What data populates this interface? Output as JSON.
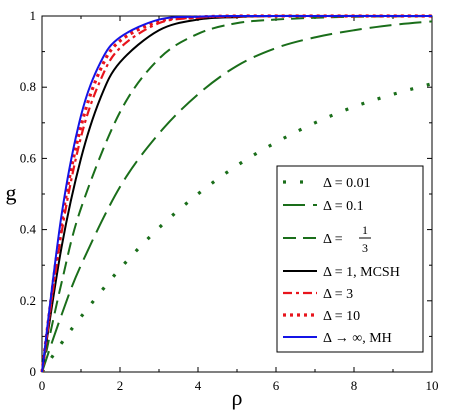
{
  "chart_data": {
    "type": "line",
    "xlabel": "ρ",
    "ylabel": "g",
    "xlim": [
      0,
      10
    ],
    "ylim": [
      0,
      1
    ],
    "x_ticks": [
      "0",
      "2",
      "4",
      "6",
      "8",
      "10"
    ],
    "y_ticks": [
      "0",
      "0.2",
      "0.4",
      "0.6",
      "0.8",
      "1"
    ],
    "grid": false,
    "legend_position": "right",
    "series": [
      {
        "name": "Δ = 0.01",
        "color": "#1a6e1a",
        "style": "dotted",
        "x": [
          0,
          0.5,
          1,
          2,
          3,
          4,
          5,
          6,
          7,
          8,
          9,
          10
        ],
        "y": [
          0,
          0.081,
          0.155,
          0.29,
          0.405,
          0.5,
          0.58,
          0.645,
          0.7,
          0.745,
          0.78,
          0.81
        ]
      },
      {
        "name": "Δ = 0.1",
        "color": "#1a6e1a",
        "style": "long-dash",
        "x": [
          0,
          0.5,
          1,
          2,
          3,
          4,
          5,
          6,
          7,
          8,
          9,
          10
        ],
        "y": [
          0,
          0.16,
          0.3,
          0.52,
          0.67,
          0.78,
          0.86,
          0.91,
          0.94,
          0.96,
          0.975,
          0.985
        ]
      },
      {
        "name": "Δ = 1/3",
        "color": "#1a6e1a",
        "style": "dash",
        "x": [
          0,
          0.5,
          1,
          2,
          3,
          4,
          5,
          6,
          7,
          8,
          9,
          10
        ],
        "y": [
          0,
          0.25,
          0.46,
          0.73,
          0.88,
          0.95,
          0.98,
          0.99,
          0.995,
          0.998,
          0.999,
          1.0
        ]
      },
      {
        "name": "Δ = 1, MCSH",
        "color": "#000000",
        "style": "solid",
        "x": [
          0,
          0.5,
          1,
          1.5,
          2,
          3,
          4,
          5,
          6,
          7,
          8,
          10
        ],
        "y": [
          0,
          0.35,
          0.6,
          0.77,
          0.87,
          0.96,
          0.99,
          0.997,
          1.0,
          1.0,
          1.0,
          1.0
        ]
      },
      {
        "name": "Δ = 3",
        "color": "#e8141c",
        "style": "dash-dot",
        "x": [
          0,
          0.5,
          1,
          1.5,
          2,
          3,
          4,
          5,
          6,
          7,
          8,
          10
        ],
        "y": [
          0,
          0.39,
          0.66,
          0.82,
          0.91,
          0.98,
          0.995,
          0.999,
          1.0,
          1.0,
          1.0,
          1.0
        ]
      },
      {
        "name": "Δ = 10",
        "color": "#e8141c",
        "style": "dotted",
        "x": [
          0,
          0.5,
          1,
          1.5,
          2,
          3,
          4,
          5,
          6,
          7,
          8,
          10
        ],
        "y": [
          0,
          0.42,
          0.69,
          0.85,
          0.93,
          0.985,
          0.997,
          1.0,
          1.0,
          1.0,
          1.0,
          1.0
        ]
      },
      {
        "name": "Δ → ∞, MH",
        "color": "#1414e6",
        "style": "solid",
        "x": [
          0,
          0.5,
          1,
          1.5,
          2,
          3,
          4,
          5,
          6,
          7,
          8,
          10
        ],
        "y": [
          0,
          0.44,
          0.72,
          0.87,
          0.94,
          0.99,
          0.998,
          1.0,
          1.0,
          1.0,
          1.0,
          1.0
        ]
      }
    ],
    "legend": [
      {
        "text": "Δ = 0.01"
      },
      {
        "text": "Δ = 0.1"
      },
      {
        "text_prefix": "Δ =",
        "frac_num": "1",
        "frac_den": "3"
      },
      {
        "text": "Δ = 1, MCSH"
      },
      {
        "text": "Δ = 3"
      },
      {
        "text": "Δ = 10"
      },
      {
        "text": "Δ → ∞, MH"
      }
    ]
  }
}
